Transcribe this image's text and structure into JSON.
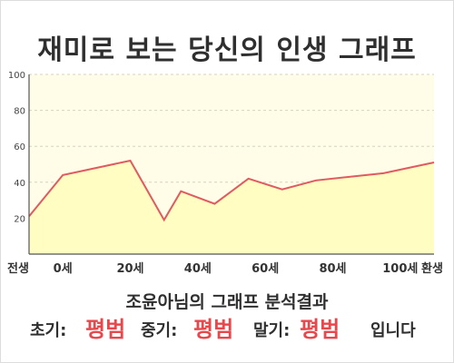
{
  "title": "재미로 보는 당신의 인생 그래프",
  "chart_data": {
    "type": "area",
    "x_categories": [
      "전생",
      "0세",
      "20세",
      "40세",
      "60세",
      "80세",
      "100세",
      "환생"
    ],
    "y_ticks": [
      20,
      40,
      60,
      80,
      100
    ],
    "ylim": [
      0,
      100
    ],
    "grid": true,
    "series": [
      {
        "x": [
          -10,
          0,
          20,
          30,
          35,
          45,
          55,
          65,
          75,
          95,
          110
        ],
        "y": [
          21,
          44,
          52,
          19,
          35,
          28,
          42,
          36,
          41,
          45,
          51
        ]
      }
    ],
    "colors": {
      "line": "#e05a5f",
      "fill": "#fffdc2",
      "plot_bg": "#fffde8",
      "grid": "#d4d4c0"
    }
  },
  "summary": "조윤아님의 그래프 분석결과",
  "result": {
    "early_label": "초기:",
    "early_value": "평범",
    "middle_label": "중기:",
    "middle_value": "평범",
    "late_label": "말기:",
    "late_value": "평범",
    "suffix": "입니다"
  }
}
